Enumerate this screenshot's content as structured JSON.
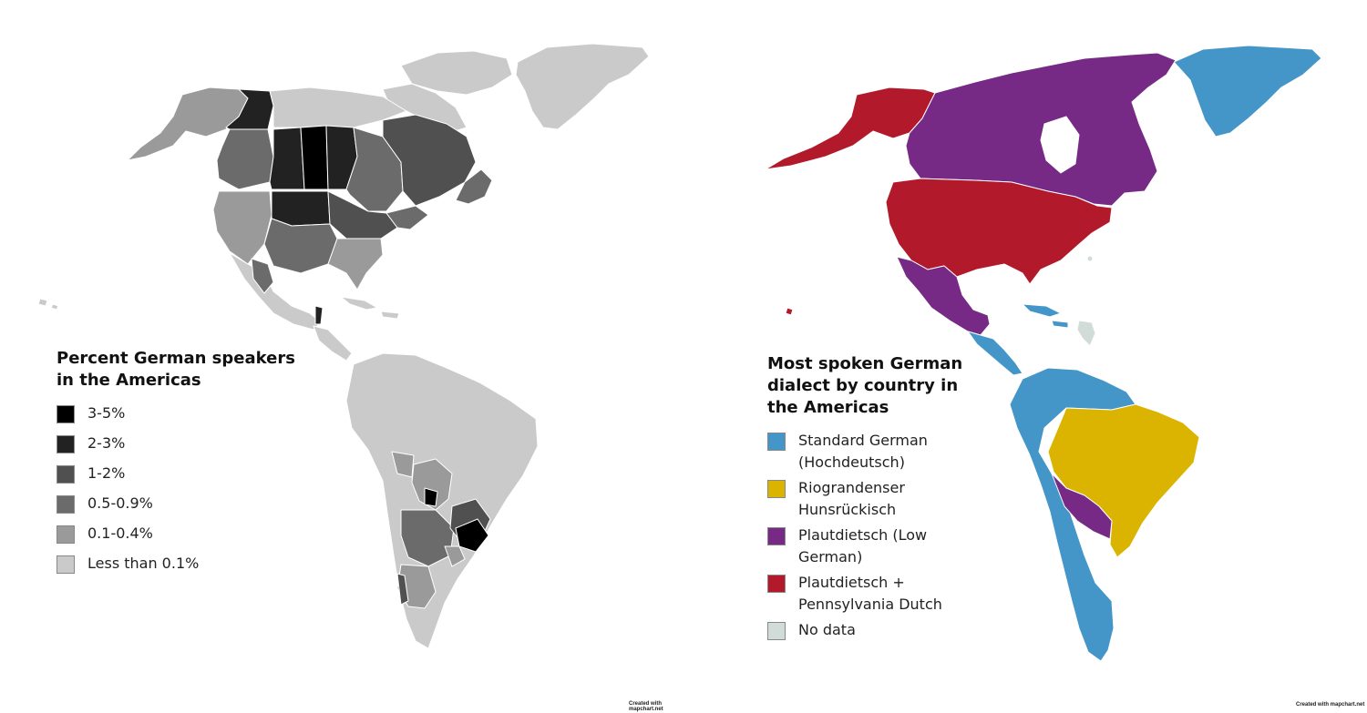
{
  "colors": {
    "background": "#ffffff",
    "border": "#ffffff",
    "left_scale": [
      "#000000",
      "#222222",
      "#505050",
      "#6b6b6b",
      "#9a9a9a",
      "#cacaca"
    ],
    "standard_german": "#4496c9",
    "riograndenser": "#dab400",
    "plautdietsch": "#762a85",
    "plautdietsch_penn": "#b21a2b",
    "no_data": "#d1dcd9"
  },
  "left_map": {
    "legend_title": "Percent German speakers in the Americas",
    "legend": [
      {
        "label": "3-5%",
        "color": "#000000"
      },
      {
        "label": "2-3%",
        "color": "#222222"
      },
      {
        "label": "1-2%",
        "color": "#505050"
      },
      {
        "label": "0.5-0.9%",
        "color": "#6b6b6b"
      },
      {
        "label": "0.1-0.4%",
        "color": "#9a9a9a"
      },
      {
        "label": "Less than 0.1%",
        "color": "#cacaca"
      }
    ],
    "credit": "Created with mapchart.net"
  },
  "right_map": {
    "legend_title": "Most spoken German dialect by country in the Americas",
    "legend": [
      {
        "label": "Standard German (Hochdeutsch)",
        "color": "#4496c9"
      },
      {
        "label": "Riograndenser Hunsrückisch",
        "color": "#dab400"
      },
      {
        "label": "Plautdietsch (Low German)",
        "color": "#762a85"
      },
      {
        "label": "Plautdietsch + Pennsylvania Dutch",
        "color": "#b21a2b"
      },
      {
        "label": "No data",
        "color": "#d1dcd9"
      }
    ],
    "credit": "Created with mapchart.net"
  }
}
